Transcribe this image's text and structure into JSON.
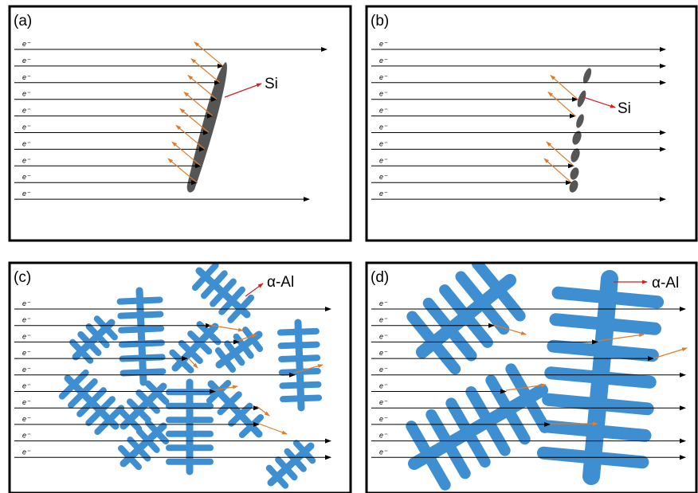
{
  "panels": [
    {
      "label": "(a)",
      "electrons": [
        "e⁻",
        "e⁻",
        "e⁻",
        "e⁻",
        "e⁻",
        "e⁻",
        "e⁻",
        "e⁻",
        "e⁻",
        "e⁻"
      ],
      "annotation": "Si"
    },
    {
      "label": "(b)",
      "electrons": [
        "e⁻",
        "e⁻",
        "e⁻",
        "e⁻",
        "e⁻",
        "e⁻",
        "e⁻",
        "e⁻",
        "e⁻",
        "e⁻"
      ],
      "annotation": "Si"
    },
    {
      "label": "(c)",
      "electrons": [
        "e⁻",
        "e⁻",
        "e⁻",
        "e⁻",
        "e⁻",
        "e⁻",
        "e⁻",
        "e⁻",
        "e⁻",
        "e⁻"
      ],
      "annotation": "α-Al"
    },
    {
      "label": "(d)",
      "electrons": [
        "e⁻",
        "e⁻",
        "e⁻",
        "e⁻",
        "e⁻",
        "e⁻",
        "e⁻",
        "e⁻",
        "e⁻",
        "e⁻"
      ],
      "annotation": "α-Al"
    }
  ]
}
